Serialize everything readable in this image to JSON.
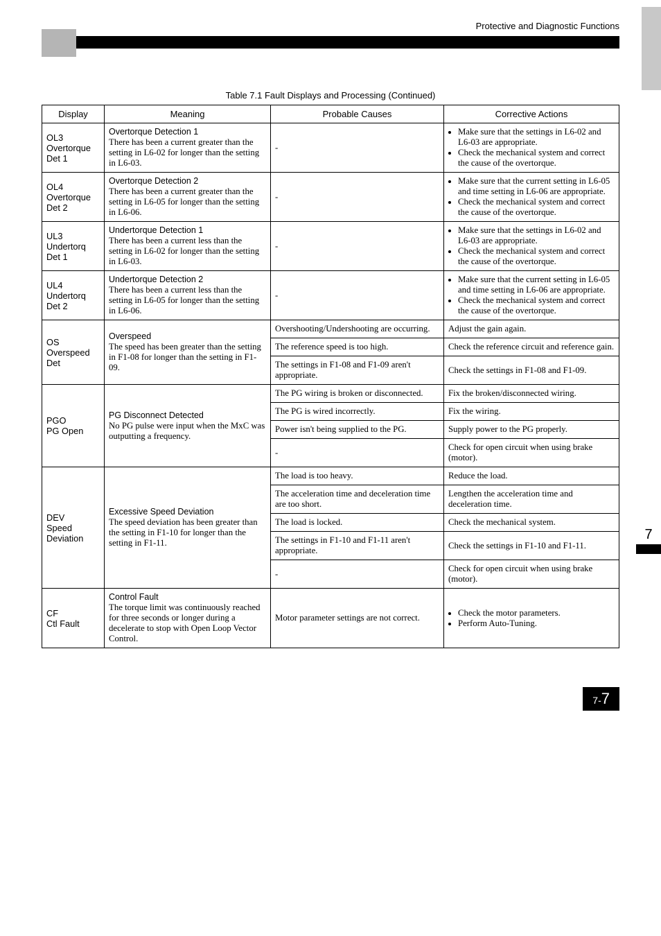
{
  "header": {
    "section_title": "Protective and Diagnostic Functions"
  },
  "caption": "Table 7.1  Fault Displays and Processing (Continued)",
  "columns": {
    "display": "Display",
    "meaning": "Meaning",
    "causes": "Probable Causes",
    "actions": "Corrective Actions"
  },
  "rows": {
    "ol3": {
      "display": "OL3\nOvertorque\nDet 1",
      "title": "Overtorque Detection 1",
      "body": "There has been a current greater than the setting in L6-02 for longer than the setting in L6-03.",
      "causes": "-",
      "actions": {
        "b1": "Make sure that the settings in L6-02 and L6-03 are appropriate.",
        "b2": "Check the mechanical system and correct the cause of the overtorque."
      }
    },
    "ol4": {
      "display": "OL4\nOvertorque\nDet 2",
      "title": "Overtorque Detection 2",
      "body": "There has been a current greater than the setting in L6-05 for longer than the setting in L6-06.",
      "causes": "-",
      "actions": {
        "b1": "Make sure that the current setting in L6-05 and time setting in L6-06 are appropriate.",
        "b2": "Check the mechanical system and correct the cause of the overtorque."
      }
    },
    "ul3": {
      "display": "UL3\nUndertorq\nDet 1",
      "title": "Undertorque Detection 1",
      "body": "There has been a current less than the setting in L6-02 for longer than the setting in L6-03.",
      "causes": "-",
      "actions": {
        "b1": "Make sure that the settings in L6-02 and L6-03 are appropriate.",
        "b2": "Check the mechanical system and correct the cause of the overtorque."
      }
    },
    "ul4": {
      "display": "UL4\nUndertorq\nDet 2",
      "title": "Undertorque Detection 2",
      "body": "There has been a current less than the setting in L6-05 for longer than the setting in L6-06.",
      "causes": "-",
      "actions": {
        "b1": "Make sure that the current setting in L6-05 and time setting in L6-06 are appropriate.",
        "b2": "Check the mechanical system and correct the cause of the overtorque."
      }
    },
    "os": {
      "display": "OS\nOverspeed\nDet",
      "title": "Overspeed",
      "body": "The speed has been greater than the setting in F1-08 for longer than the setting in F1-09.",
      "r1": {
        "cause": "Overshooting/Undershooting are occurring.",
        "action": "Adjust the gain again."
      },
      "r2": {
        "cause": "The reference speed is too high.",
        "action": "Check the reference circuit and reference gain."
      },
      "r3": {
        "cause": "The settings in F1-08 and F1-09 aren't appropriate.",
        "action": "Check the settings in F1-08 and F1-09."
      }
    },
    "pgo": {
      "display": "PGO\nPG Open",
      "title": "PG Disconnect Detected",
      "body": "No PG pulse were input when the MxC was outputting a frequency.",
      "r1": {
        "cause": "The PG wiring is broken or disconnected.",
        "action": "Fix the broken/disconnected wiring."
      },
      "r2": {
        "cause": "The PG is wired incorrectly.",
        "action": "Fix the wiring."
      },
      "r3": {
        "cause": "Power isn't being supplied to the PG.",
        "action": "Supply power to the PG properly."
      },
      "r4": {
        "cause": "-",
        "action": "Check for open circuit when using brake (motor)."
      }
    },
    "dev": {
      "display": "DEV\nSpeed\nDeviation",
      "title": "Excessive Speed Deviation",
      "body": "The speed deviation has been greater than the setting in F1-10 for longer than the setting in F1-11.",
      "r1": {
        "cause": "The load is too heavy.",
        "action": "Reduce the load."
      },
      "r2": {
        "cause": "The acceleration time and deceleration time are too short.",
        "action": "Lengthen the acceleration time and deceleration time."
      },
      "r3": {
        "cause": "The load is locked.",
        "action": "Check the mechanical system."
      },
      "r4": {
        "cause": "The settings in F1-10 and F1-11 aren't appropriate.",
        "action": "Check the settings in F1-10 and F1-11."
      },
      "r5": {
        "cause": "-",
        "action": "Check for open circuit when using brake (motor)."
      }
    },
    "cf": {
      "display": "CF\nCtl Fault",
      "title": "Control Fault",
      "body": "The torque limit was continuously reached for three seconds or longer during a decelerate to stop with Open Loop Vector Control.",
      "cause": "Motor parameter settings are not correct.",
      "actions": {
        "b1": "Check the motor parameters.",
        "b2": "Perform Auto-Tuning."
      }
    }
  },
  "side_tab": "7",
  "footer": {
    "prefix": "7-",
    "page": "7"
  }
}
